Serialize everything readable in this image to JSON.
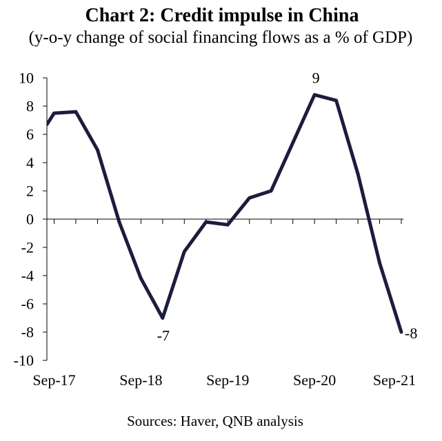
{
  "chart_data": {
    "type": "line",
    "title": "Chart 2: Credit impulse in China",
    "subtitle": "(y-o-y change of social financing flows as a % of GDP)",
    "source": "Sources: Haver, QNB analysis",
    "xlim": [
      "2017-08",
      "2021-09"
    ],
    "ylim": [
      -10,
      10
    ],
    "y_ticks": [
      10,
      8,
      6,
      4,
      2,
      0,
      -2,
      -4,
      -6,
      -8,
      -10
    ],
    "x_ticks": [
      "2017-09",
      "2018-09",
      "2019-09",
      "2020-09",
      "2021-09"
    ],
    "x_tick_labels": [
      "Sep-17",
      "Sep-18",
      "Sep-19",
      "Sep-20",
      "Sep-21"
    ],
    "grid": false,
    "series": [
      {
        "x": [
          "2017-08",
          "2017-09",
          "2017-12",
          "2018-03",
          "2018-06",
          "2018-09",
          "2018-12",
          "2019-03",
          "2019-06",
          "2019-09",
          "2019-12",
          "2020-03",
          "2020-06",
          "2020-09",
          "2020-12",
          "2021-03",
          "2021-06",
          "2021-09"
        ],
        "values": [
          6.7,
          7.5,
          7.6,
          4.9,
          -0.2,
          -4.2,
          -7.0,
          -2.3,
          -0.2,
          -0.4,
          1.5,
          2.0,
          5.4,
          8.8,
          8.4,
          3.2,
          -3.1,
          -8.0
        ]
      }
    ],
    "data_labels": [
      {
        "x": "2020-09",
        "text": "9"
      },
      {
        "x": "2018-12",
        "text": "-7"
      },
      {
        "x": "2021-09",
        "text": "-8"
      }
    ],
    "colors": {
      "line": "#1c1d3d",
      "axis": "#000000"
    }
  }
}
